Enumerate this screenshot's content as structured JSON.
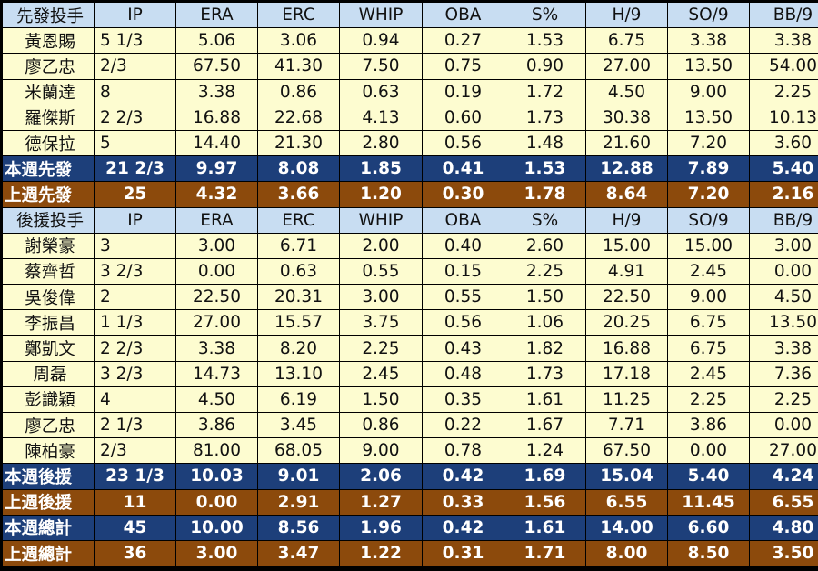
{
  "columns": [
    "IP",
    "ERA",
    "ERC",
    "WHIP",
    "OBA",
    "S%",
    "H/9",
    "SO/9",
    "BB/9"
  ],
  "starters": {
    "header": "先發投手",
    "rows": [
      [
        "黃恩賜",
        "5 1/3",
        "5.06",
        "3.06",
        "0.94",
        "0.27",
        "1.53",
        "6.75",
        "3.38",
        "3.38"
      ],
      [
        "廖乙忠",
        "2/3",
        "67.50",
        "41.30",
        "7.50",
        "0.75",
        "0.90",
        "27.00",
        "13.50",
        "54.00"
      ],
      [
        "米蘭達",
        "8",
        "3.38",
        "0.86",
        "0.63",
        "0.19",
        "1.72",
        "4.50",
        "9.00",
        "2.25"
      ],
      [
        "羅傑斯",
        "2 2/3",
        "16.88",
        "22.68",
        "4.13",
        "0.60",
        "1.73",
        "30.38",
        "13.50",
        "10.13"
      ],
      [
        "德保拉",
        "5",
        "14.40",
        "21.30",
        "2.80",
        "0.56",
        "1.48",
        "21.60",
        "7.20",
        "3.60"
      ]
    ],
    "this_week": [
      "本週先發",
      "21 2/3",
      "9.97",
      "8.08",
      "1.85",
      "0.41",
      "1.53",
      "12.88",
      "7.89",
      "5.40"
    ],
    "last_week": [
      "上週先發",
      "25",
      "4.32",
      "3.66",
      "1.20",
      "0.30",
      "1.78",
      "8.64",
      "7.20",
      "2.16"
    ]
  },
  "relievers": {
    "header": "後援投手",
    "rows": [
      [
        "謝榮豪",
        "3",
        "3.00",
        "6.71",
        "2.00",
        "0.40",
        "2.60",
        "15.00",
        "15.00",
        "3.00"
      ],
      [
        "蔡齊哲",
        "3 2/3",
        "0.00",
        "0.63",
        "0.55",
        "0.15",
        "2.25",
        "4.91",
        "2.45",
        "0.00"
      ],
      [
        "吳俊偉",
        "2",
        "22.50",
        "20.31",
        "3.00",
        "0.55",
        "1.50",
        "22.50",
        "9.00",
        "4.50"
      ],
      [
        "李振昌",
        "1 1/3",
        "27.00",
        "15.57",
        "3.75",
        "0.56",
        "1.06",
        "20.25",
        "6.75",
        "13.50"
      ],
      [
        "鄭凱文",
        "2 2/3",
        "3.38",
        "8.20",
        "2.25",
        "0.43",
        "1.82",
        "16.88",
        "6.75",
        "3.38"
      ],
      [
        "周磊",
        "3 2/3",
        "14.73",
        "13.10",
        "2.45",
        "0.48",
        "1.73",
        "17.18",
        "2.45",
        "7.36"
      ],
      [
        "彭識穎",
        "4",
        "4.50",
        "6.19",
        "1.50",
        "0.35",
        "1.61",
        "11.25",
        "2.25",
        "2.25"
      ],
      [
        "廖乙忠",
        "2 1/3",
        "3.86",
        "3.45",
        "0.86",
        "0.22",
        "1.67",
        "7.71",
        "3.86",
        "0.00"
      ],
      [
        "陳柏豪",
        "2/3",
        "81.00",
        "68.05",
        "9.00",
        "0.78",
        "1.24",
        "67.50",
        "0.00",
        "27.00"
      ]
    ],
    "this_week": [
      "本週後援",
      "23 1/3",
      "10.03",
      "9.01",
      "2.06",
      "0.42",
      "1.69",
      "15.04",
      "5.40",
      "4.24"
    ],
    "last_week": [
      "上週後援",
      "11",
      "0.00",
      "2.91",
      "1.27",
      "0.33",
      "1.56",
      "6.55",
      "11.45",
      "6.55"
    ]
  },
  "totals": {
    "this_week": [
      "本週總計",
      "45",
      "10.00",
      "8.56",
      "1.96",
      "0.42",
      "1.61",
      "14.00",
      "6.60",
      "4.80"
    ],
    "last_week": [
      "上週總計",
      "36",
      "3.00",
      "3.47",
      "1.22",
      "0.31",
      "1.71",
      "8.00",
      "8.50",
      "3.50"
    ]
  },
  "colors": {
    "header_bg": "#c8ddf2",
    "row_bg": "#fdfcd0",
    "this_week_bg": "#1d3f7a",
    "last_week_bg": "#8c4a0c"
  }
}
